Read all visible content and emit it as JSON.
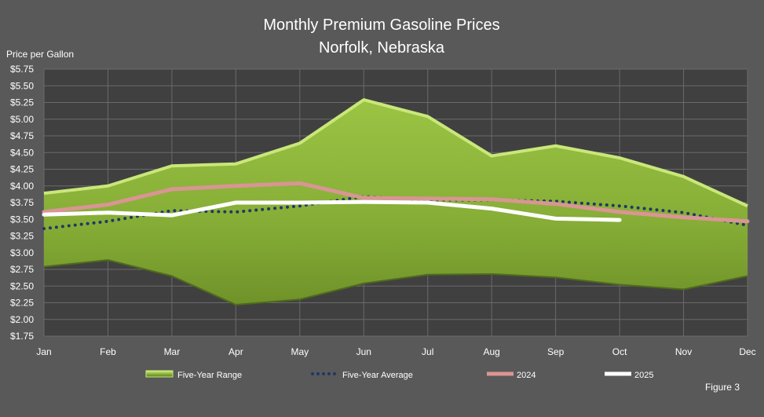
{
  "chart_data": {
    "type": "area",
    "title": "Monthly Premium Gasoline Prices",
    "subtitle": "Norfolk, Nebraska",
    "ylabel": "Price per Gallon",
    "xlabel": "",
    "ylim": [
      1.75,
      5.75
    ],
    "y_ticks": [
      "$1.75",
      "$2.00",
      "$2.25",
      "$2.50",
      "$2.75",
      "$3.00",
      "$3.25",
      "$3.50",
      "$3.75",
      "$4.00",
      "$4.25",
      "$4.50",
      "$4.75",
      "$5.00",
      "$5.25",
      "$5.50",
      "$5.75"
    ],
    "y_tick_values": [
      1.75,
      2.0,
      2.25,
      2.5,
      2.75,
      3.0,
      3.25,
      3.5,
      3.75,
      4.0,
      4.25,
      4.5,
      4.75,
      5.0,
      5.25,
      5.5,
      5.75
    ],
    "categories": [
      "Jan",
      "Feb",
      "Mar",
      "Apr",
      "May",
      "Jun",
      "Jul",
      "Aug",
      "Sep",
      "Oct",
      "Nov",
      "Dec"
    ],
    "grid": true,
    "legend_position": "bottom",
    "range_series": {
      "name": "Five-Year Range",
      "high": [
        3.89,
        4.0,
        4.3,
        4.33,
        4.64,
        5.29,
        5.04,
        4.45,
        4.6,
        4.42,
        4.14,
        3.7
      ],
      "low": [
        2.79,
        2.89,
        2.65,
        2.22,
        2.3,
        2.54,
        2.67,
        2.68,
        2.63,
        2.52,
        2.45,
        2.65
      ],
      "color": "#8db43a"
    },
    "series": [
      {
        "name": "Five-Year Average",
        "values": [
          3.36,
          3.47,
          3.63,
          3.61,
          3.7,
          3.84,
          3.79,
          3.79,
          3.77,
          3.7,
          3.6,
          3.41
        ],
        "color": "#1f3864",
        "style": "dotted"
      },
      {
        "name": "2024",
        "values": [
          3.61,
          3.72,
          3.95,
          4.0,
          4.04,
          3.82,
          3.81,
          3.8,
          3.73,
          3.61,
          3.53,
          3.47
        ],
        "color": "#d99594",
        "style": "solid"
      },
      {
        "name": "2025",
        "values": [
          3.57,
          3.6,
          3.56,
          3.75,
          3.75,
          3.76,
          3.75,
          3.66,
          3.51,
          3.49,
          null,
          null
        ],
        "color": "#ffffff",
        "style": "solid"
      }
    ],
    "annotation": "Figure 3"
  }
}
